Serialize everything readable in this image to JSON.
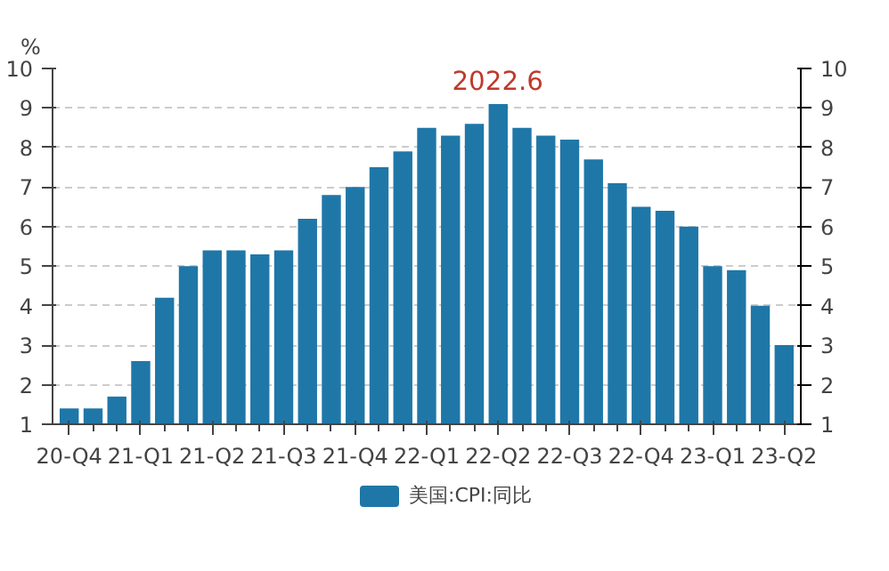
{
  "chart_data": {
    "type": "bar",
    "ylabel": "%",
    "categories": [
      "20-Q4",
      null,
      null,
      "21-Q1",
      null,
      null,
      "21-Q2",
      null,
      null,
      "21-Q3",
      null,
      null,
      "21-Q4",
      null,
      null,
      "22-Q1",
      null,
      null,
      "22-Q2",
      null,
      null,
      "22-Q3",
      null,
      null,
      "22-Q4",
      null,
      null,
      "23-Q1",
      null,
      null,
      "23-Q2"
    ],
    "series": [
      {
        "name": "美国:CPI:同比",
        "color": "#1f77a8",
        "values": [
          1.4,
          1.4,
          1.7,
          2.6,
          4.2,
          5.0,
          5.4,
          5.4,
          5.3,
          5.4,
          6.2,
          6.8,
          7.0,
          7.5,
          7.9,
          8.5,
          8.3,
          8.6,
          9.1,
          8.5,
          8.3,
          8.2,
          7.7,
          7.1,
          6.5,
          6.4,
          6.0,
          5.0,
          4.9,
          4.0,
          3.0
        ]
      }
    ],
    "ylim": [
      1,
      10
    ],
    "yticks": [
      1,
      2,
      3,
      4,
      5,
      6,
      7,
      8,
      9,
      10
    ],
    "y2lim": [
      1,
      10
    ],
    "y2ticks": [
      1,
      2,
      3,
      4,
      5,
      6,
      7,
      8,
      9,
      10
    ],
    "annotations": [
      "2022.6"
    ],
    "grid": "y",
    "legend": "bottom"
  }
}
